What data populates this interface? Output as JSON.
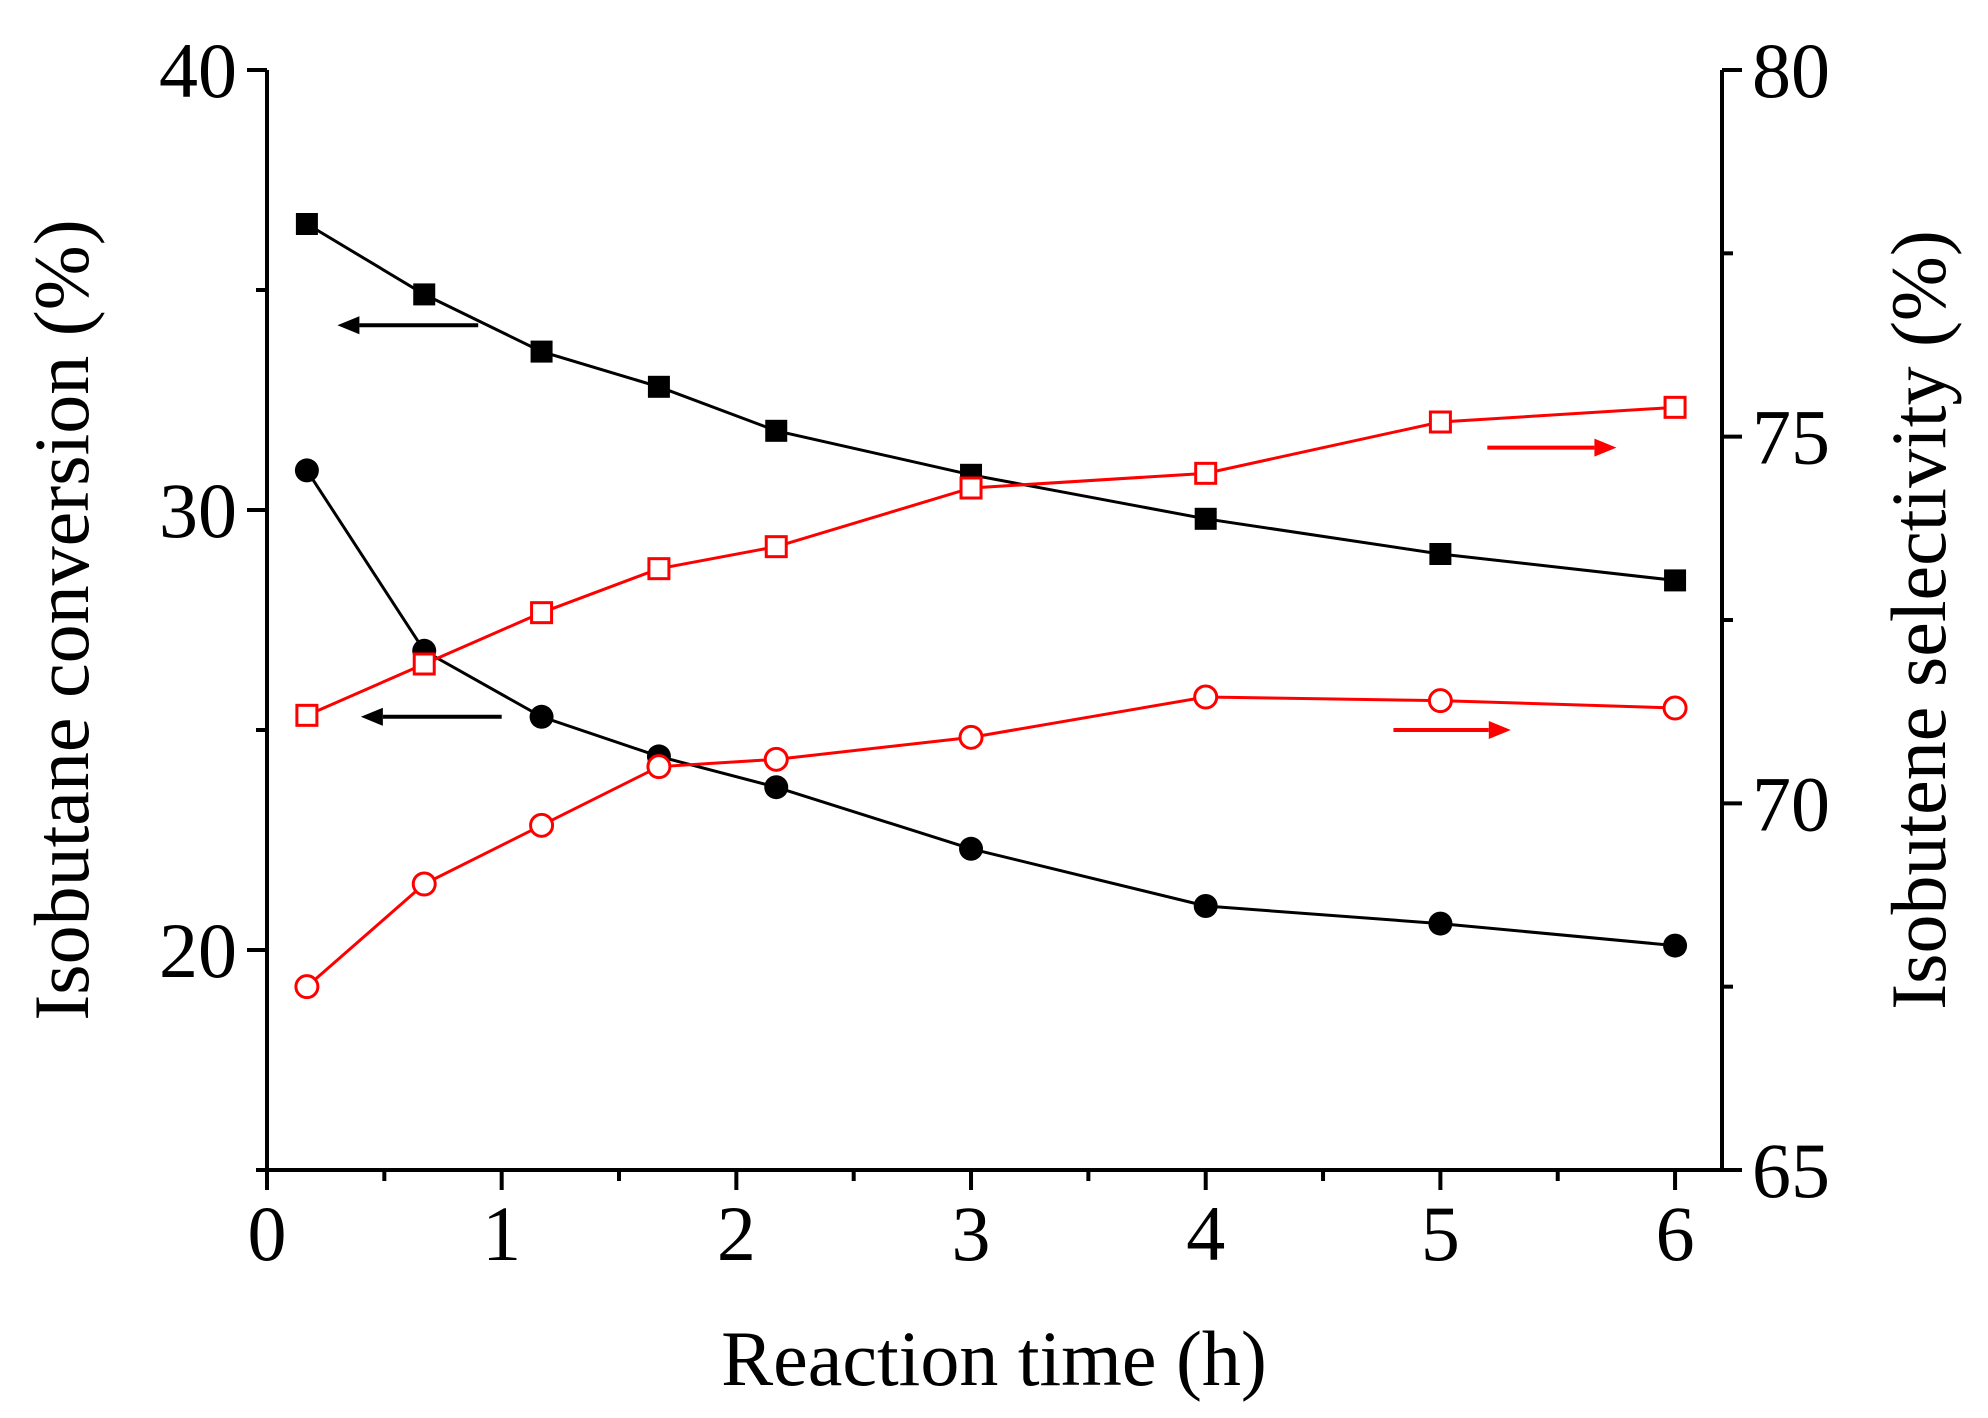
{
  "colors": {
    "conversion": "#000000",
    "selectivity": "#ff0000"
  },
  "chart_data": {
    "type": "line",
    "title": "",
    "xlabel": "Reaction time (h)",
    "ylabel_left": "Isobutane conversion (%)",
    "ylabel_right": "Isobutene selectivity (%)",
    "xlim": [
      0,
      6.2
    ],
    "ylim_left": [
      15,
      40
    ],
    "ylim_right": [
      65,
      80
    ],
    "x_ticks": [
      "0",
      "1",
      "2",
      "3",
      "4",
      "5",
      "6"
    ],
    "y_left_ticks": [
      "20",
      "30",
      "40"
    ],
    "y_right_ticks": [
      "65",
      "70",
      "75",
      "80"
    ],
    "grid": false,
    "series": [
      {
        "name": "Conversion (filled squares)",
        "axis": "left",
        "marker": "square-filled",
        "color": "#000000",
        "x": [
          0.17,
          0.67,
          1.17,
          1.67,
          2.17,
          3.0,
          4.0,
          5.0,
          6.0
        ],
        "y": [
          36.5,
          34.9,
          33.6,
          32.8,
          31.8,
          30.8,
          29.8,
          29.0,
          28.4
        ]
      },
      {
        "name": "Conversion (filled circles)",
        "axis": "left",
        "marker": "circle-filled",
        "color": "#000000",
        "x": [
          0.17,
          0.67,
          1.17,
          1.67,
          2.17,
          3.0,
          4.0,
          5.0,
          6.0
        ],
        "y": [
          30.9,
          26.8,
          25.3,
          24.4,
          23.7,
          22.3,
          21.0,
          20.6,
          20.1
        ]
      },
      {
        "name": "Selectivity (open squares)",
        "axis": "right",
        "marker": "square-open",
        "color": "#ff0000",
        "x": [
          0.17,
          0.67,
          1.17,
          1.67,
          2.17,
          3.0,
          4.0,
          5.0,
          6.0
        ],
        "y": [
          71.2,
          71.9,
          72.6,
          73.2,
          73.5,
          74.3,
          74.5,
          75.2,
          75.4
        ]
      },
      {
        "name": "Selectivity (open circles)",
        "axis": "right",
        "marker": "circle-open",
        "color": "#ff0000",
        "x": [
          0.17,
          0.67,
          1.17,
          1.67,
          2.17,
          3.0,
          4.0,
          5.0,
          6.0
        ],
        "y": [
          67.5,
          68.9,
          69.7,
          70.5,
          70.6,
          70.9,
          71.45,
          71.4,
          71.3
        ]
      }
    ],
    "annotations": [
      {
        "name": "arrow-left-squares",
        "direction": "left",
        "color": "#000000",
        "x_from": 0.9,
        "x_to": 0.3,
        "axis": "left",
        "y": 34.2
      },
      {
        "name": "arrow-left-circles",
        "direction": "left",
        "color": "#000000",
        "x_from": 1.0,
        "x_to": 0.4,
        "axis": "left",
        "y": 25.3
      },
      {
        "name": "arrow-right-squares",
        "direction": "right",
        "color": "#ff0000",
        "x_from": 5.2,
        "x_to": 5.75,
        "axis": "right",
        "y": 74.85
      },
      {
        "name": "arrow-right-circles",
        "direction": "right",
        "color": "#ff0000",
        "x_from": 4.8,
        "x_to": 5.3,
        "axis": "right",
        "y": 71.0
      }
    ]
  }
}
